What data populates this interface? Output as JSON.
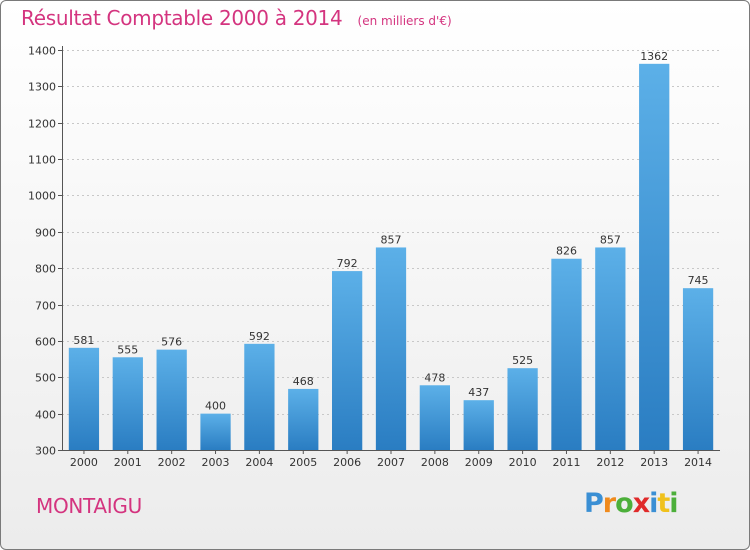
{
  "header": {
    "title": "Résultat Comptable 2000 à 2014",
    "subtitle": "(en milliers d'€)"
  },
  "footer": {
    "place": "MONTAIGU",
    "logo": {
      "letters": [
        "P",
        "r",
        "o",
        "x",
        "i",
        "t",
        "i"
      ],
      "colors": [
        "#3a8fd4",
        "#f08a1c",
        "#4caf3a",
        "#e02a2a",
        "#3a8fd4",
        "#f0c11c",
        "#4caf3a"
      ]
    }
  },
  "colors": {
    "accent": "#d4347f",
    "bar_top": "#5cb0e8",
    "bar_bottom": "#2a7dc2"
  },
  "chart_data": {
    "type": "bar",
    "title": "Résultat Comptable 2000 à 2014",
    "subtitle": "(en milliers d'€)",
    "categories": [
      "2000",
      "2001",
      "2002",
      "2003",
      "2004",
      "2005",
      "2006",
      "2007",
      "2008",
      "2009",
      "2010",
      "2011",
      "2012",
      "2013",
      "2014"
    ],
    "values": [
      581,
      555,
      576,
      400,
      592,
      468,
      792,
      857,
      478,
      437,
      525,
      826,
      857,
      1362,
      745
    ],
    "ylim": [
      300,
      1400
    ],
    "yticks": [
      300,
      400,
      500,
      600,
      700,
      800,
      900,
      1000,
      1100,
      1200,
      1300,
      1400
    ],
    "grid": true
  }
}
